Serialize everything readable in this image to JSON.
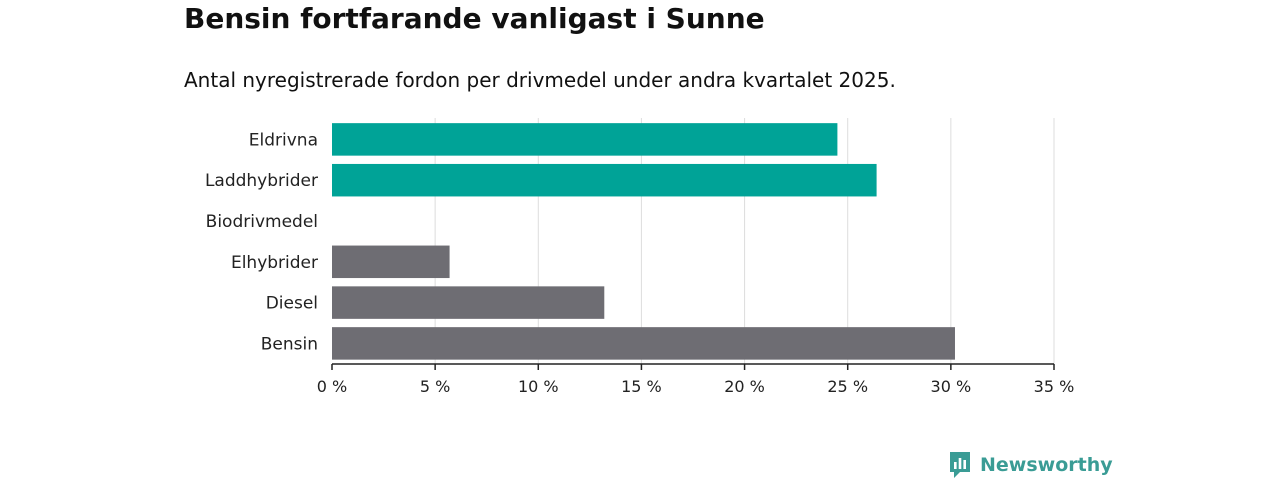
{
  "title": "Bensin fortfarande vanligast i Sunne",
  "subtitle": "Antal nyregistrerade fordon per drivmedel under andra kvartalet 2025.",
  "logo": {
    "text": "Newsworthy",
    "icon": "newsworthy-logo-icon"
  },
  "colors": {
    "highlight": "#00a397",
    "default": "#6e6d73",
    "grid": "#dddddd",
    "axis": "#222222"
  },
  "chart_data": {
    "type": "bar",
    "orientation": "horizontal",
    "categories": [
      "Eldrivna",
      "Laddhybrider",
      "Biodrivmedel",
      "Elhybrider",
      "Diesel",
      "Bensin"
    ],
    "values": [
      24.5,
      26.4,
      0,
      5.7,
      13.2,
      30.2
    ],
    "bar_colors": [
      "#00a397",
      "#00a397",
      "#6e6d73",
      "#6e6d73",
      "#6e6d73",
      "#6e6d73"
    ],
    "xlim": [
      0,
      35
    ],
    "xticks": [
      0,
      5,
      10,
      15,
      20,
      25,
      30,
      35
    ],
    "xtick_labels": [
      "0 %",
      "5 %",
      "10 %",
      "15 %",
      "20 %",
      "25 %",
      "30 %",
      "35 %"
    ],
    "xlabel": "",
    "ylabel": "",
    "grid": true
  }
}
